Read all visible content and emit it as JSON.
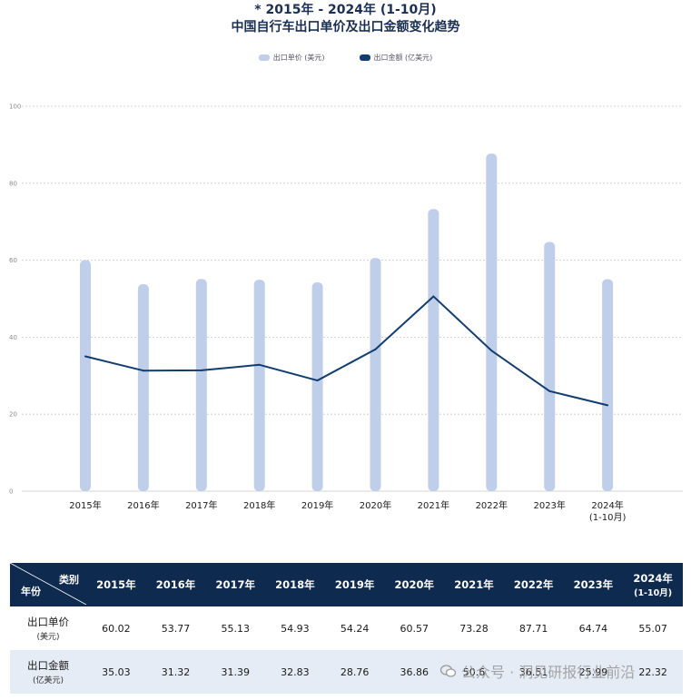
{
  "title_line1": "* 2015年 - 2024年 (1-10月)",
  "title_line2": "中国自行车出口单价及出口金额变化趋势",
  "legend": {
    "unit_price": "出口单价 (美元)",
    "export_amount": "出口金额 (亿美元)"
  },
  "colors": {
    "bar": "#bfcfe9",
    "line": "#123d6e",
    "header": "#0e2a4e",
    "row_alt": "#e6ecf5"
  },
  "chart_data": {
    "type": "bar+line",
    "categories": [
      "2015年",
      "2016年",
      "2017年",
      "2018年",
      "2019年",
      "2020年",
      "2021年",
      "2022年",
      "2023年",
      "2024年\n(1-10月)"
    ],
    "series": [
      {
        "name": "出口单价 (美元)",
        "type": "bar",
        "values": [
          60.02,
          53.77,
          55.13,
          54.93,
          54.24,
          60.57,
          73.28,
          87.71,
          64.74,
          55.07
        ]
      },
      {
        "name": "出口金额 (亿美元)",
        "type": "line",
        "values": [
          35.03,
          31.32,
          31.39,
          32.83,
          28.76,
          36.86,
          50.6,
          36.51,
          25.99,
          22.32
        ]
      }
    ],
    "yticks": [
      0,
      20,
      40,
      60,
      80,
      100
    ],
    "ylim": [
      0,
      100
    ],
    "grid": true,
    "legend_position": "top-center"
  },
  "table": {
    "corner_top": "类别",
    "corner_bottom": "年份",
    "headers": [
      {
        "main": "2015年",
        "sub": ""
      },
      {
        "main": "2016年",
        "sub": ""
      },
      {
        "main": "2017年",
        "sub": ""
      },
      {
        "main": "2018年",
        "sub": ""
      },
      {
        "main": "2019年",
        "sub": ""
      },
      {
        "main": "2020年",
        "sub": ""
      },
      {
        "main": "2021年",
        "sub": ""
      },
      {
        "main": "2022年",
        "sub": ""
      },
      {
        "main": "2023年",
        "sub": ""
      },
      {
        "main": "2024年",
        "sub": "(1-10月)"
      }
    ],
    "rows": [
      {
        "label": "出口单价",
        "unit": "(美元)",
        "values": [
          "60.02",
          "53.77",
          "55.13",
          "54.93",
          "54.24",
          "60.57",
          "73.28",
          "87.71",
          "64.74",
          "55.07"
        ]
      },
      {
        "label": "出口金额",
        "unit": "(亿美元)",
        "values": [
          "35.03",
          "31.32",
          "31.39",
          "32.83",
          "28.76",
          "36.86",
          "50.6",
          "36.51",
          "25.99",
          "22.32"
        ]
      }
    ]
  },
  "watermark": "公众号 · 洞见研报行业前沿"
}
